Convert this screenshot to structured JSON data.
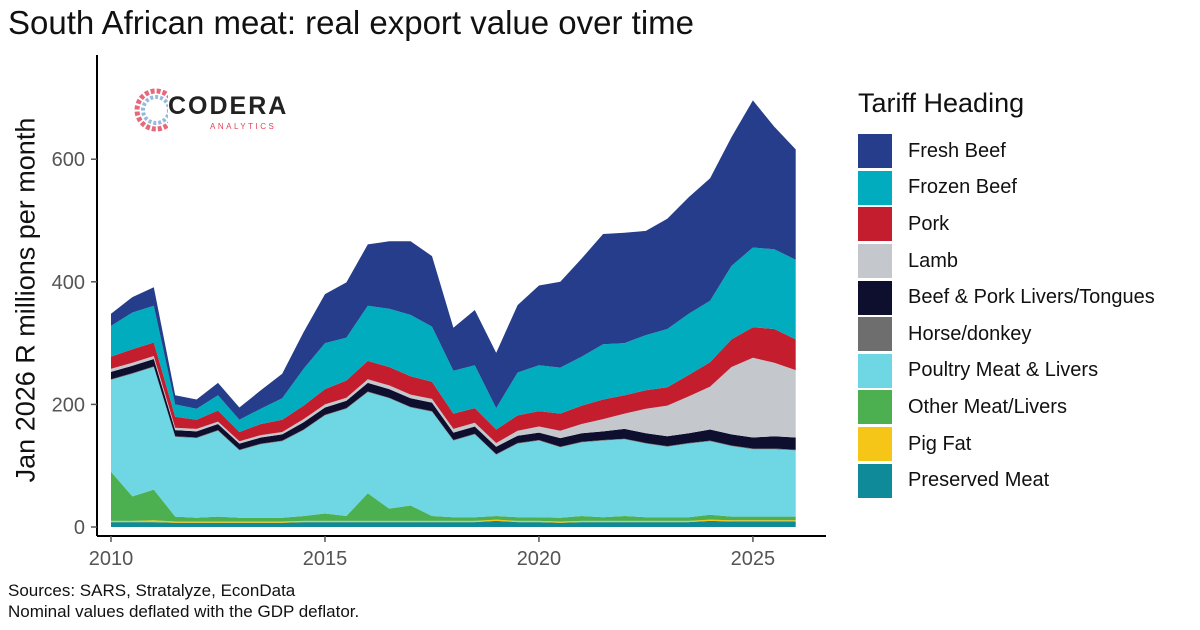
{
  "title": "South African meat: real export value over time",
  "ylabel": "Jan 2026  R millions per month",
  "sources": [
    "Sources: SARS, Stratalyze, EconData",
    "Nominal values deflated with the GDP deflator."
  ],
  "logo": {
    "name": "CODERA",
    "sub": "ANALYTICS"
  },
  "legend_title": "Tariff Heading",
  "chart_data": {
    "type": "area",
    "stacked": true,
    "xlim": [
      2010,
      2026.1
    ],
    "ylim": [
      0,
      770
    ],
    "xticks": [
      2010,
      2015,
      2020,
      2025
    ],
    "yticks": [
      0,
      200,
      400,
      600
    ],
    "x": [
      2010.0,
      2010.5,
      2011.0,
      2011.5,
      2012.0,
      2012.5,
      2013.0,
      2013.5,
      2014.0,
      2014.5,
      2015.0,
      2015.5,
      2016.0,
      2016.5,
      2017.0,
      2017.5,
      2018.0,
      2018.5,
      2019.0,
      2019.5,
      2020.0,
      2020.5,
      2021.0,
      2021.5,
      2022.0,
      2022.5,
      2023.0,
      2023.5,
      2024.0,
      2024.5,
      2025.0,
      2025.5,
      2026.0
    ],
    "series": [
      {
        "name": "Preserved Meat",
        "color": "#0e8a99",
        "values": [
          8,
          8,
          8,
          7,
          7,
          7,
          7,
          7,
          7,
          8,
          8,
          8,
          8,
          8,
          8,
          8,
          8,
          8,
          10,
          8,
          8,
          7,
          8,
          8,
          8,
          8,
          8,
          8,
          10,
          9,
          9,
          9,
          9
        ]
      },
      {
        "name": "Pig Fat",
        "color": "#f5c518",
        "values": [
          2,
          2,
          3,
          2,
          2,
          2,
          2,
          2,
          2,
          2,
          2,
          2,
          2,
          2,
          2,
          2,
          2,
          2,
          2,
          2,
          2,
          2,
          2,
          2,
          2,
          2,
          2,
          2,
          2,
          2,
          2,
          2,
          2
        ]
      },
      {
        "name": "Other Meat/Livers",
        "color": "#4caf50",
        "values": [
          80,
          40,
          50,
          8,
          6,
          8,
          6,
          6,
          6,
          8,
          12,
          8,
          45,
          20,
          25,
          8,
          6,
          6,
          6,
          6,
          6,
          6,
          8,
          6,
          8,
          6,
          6,
          6,
          8,
          6,
          6,
          6,
          6
        ]
      },
      {
        "name": "Poultry Meat & Livers",
        "color": "#6fd6e3",
        "values": [
          150,
          200,
          200,
          130,
          130,
          140,
          110,
          120,
          125,
          140,
          160,
          175,
          165,
          180,
          160,
          170,
          125,
          135,
          100,
          120,
          125,
          115,
          120,
          125,
          125,
          120,
          115,
          120,
          120,
          115,
          110,
          110,
          108
        ]
      },
      {
        "name": "Horse/donkey",
        "color": "#6e6e6e",
        "values": [
          1,
          1,
          1,
          1,
          1,
          1,
          1,
          1,
          1,
          1,
          1,
          1,
          1,
          1,
          1,
          1,
          1,
          1,
          1,
          1,
          1,
          1,
          1,
          1,
          1,
          1,
          1,
          1,
          1,
          1,
          1,
          1,
          1
        ]
      },
      {
        "name": "Beef & Pork Livers/Tongues",
        "color": "#0e0f2e",
        "values": [
          12,
          12,
          12,
          10,
          10,
          10,
          10,
          10,
          10,
          12,
          12,
          12,
          14,
          14,
          14,
          14,
          12,
          12,
          12,
          12,
          12,
          14,
          14,
          14,
          16,
          16,
          16,
          16,
          18,
          18,
          18,
          20,
          20
        ]
      },
      {
        "name": "Lamb",
        "color": "#c4c7cc",
        "values": [
          5,
          5,
          5,
          4,
          4,
          4,
          4,
          4,
          4,
          5,
          5,
          5,
          6,
          6,
          6,
          6,
          6,
          6,
          6,
          8,
          10,
          12,
          15,
          20,
          25,
          40,
          50,
          60,
          70,
          110,
          130,
          120,
          110
        ]
      },
      {
        "name": "Pork",
        "color": "#c41e2e",
        "values": [
          20,
          22,
          22,
          18,
          15,
          18,
          15,
          18,
          20,
          22,
          25,
          28,
          30,
          30,
          30,
          28,
          25,
          24,
          22,
          25,
          25,
          28,
          30,
          32,
          30,
          30,
          30,
          35,
          40,
          45,
          50,
          55,
          50
        ]
      },
      {
        "name": "Frozen Beef",
        "color": "#00acbd",
        "values": [
          50,
          60,
          60,
          20,
          18,
          25,
          20,
          25,
          35,
          60,
          75,
          70,
          90,
          95,
          100,
          90,
          70,
          70,
          35,
          70,
          75,
          75,
          80,
          90,
          85,
          90,
          95,
          100,
          100,
          120,
          130,
          130,
          130
        ]
      },
      {
        "name": "Fresh Beef",
        "color": "#253d8a",
        "values": [
          20,
          25,
          30,
          15,
          15,
          20,
          20,
          30,
          40,
          60,
          80,
          90,
          100,
          110,
          120,
          115,
          70,
          90,
          90,
          110,
          130,
          140,
          160,
          180,
          180,
          170,
          180,
          190,
          200,
          210,
          240,
          200,
          180
        ]
      }
    ]
  }
}
